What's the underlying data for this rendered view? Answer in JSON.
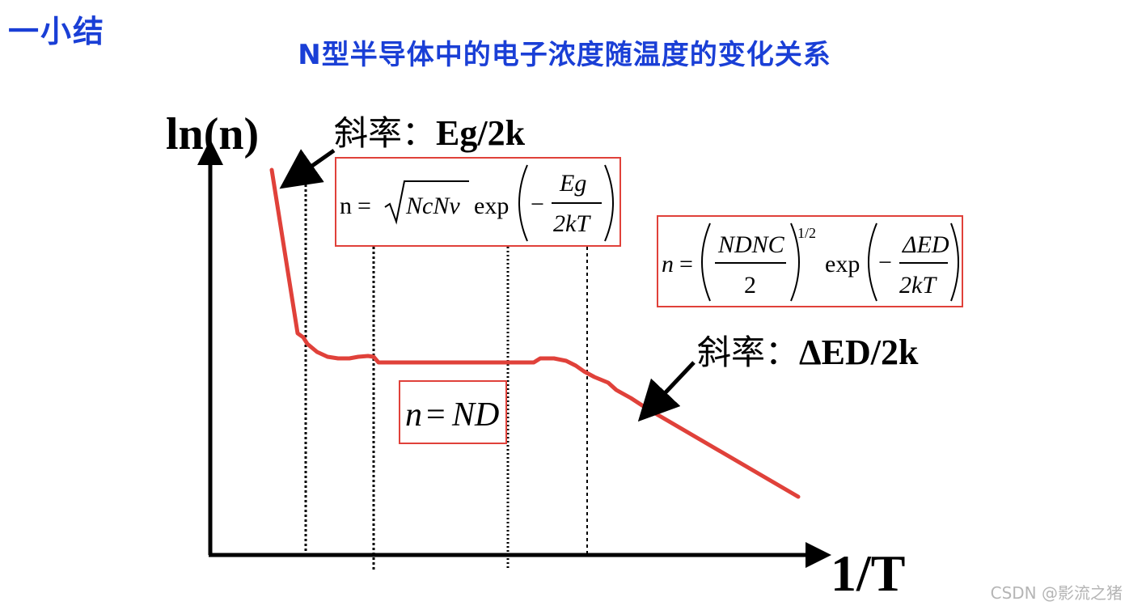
{
  "section_title": "一小结",
  "slide_title": "N型半导体中的电子浓度随温度的变化关系",
  "axes": {
    "y_label": "ln(n)",
    "x_label": "1/T"
  },
  "slopes": {
    "high_temp": {
      "prefix": "斜率：",
      "value": "Eg/2k"
    },
    "low_temp": {
      "prefix": "斜率：",
      "value": "ΔED/2k"
    }
  },
  "formulas": {
    "intrinsic": {
      "lhs": "n",
      "eq": "=",
      "sqrt_content": "NcNv",
      "exp": "exp",
      "minus": "−",
      "numerator": "Eg",
      "denominator": "2kT"
    },
    "freeze_out": {
      "lhs": "n",
      "eq": "=",
      "numerator": "NDNC",
      "denominator": "2",
      "power": "1/2",
      "exp": "exp",
      "minus": "−",
      "exp_numerator": "ΔED",
      "exp_denominator": "2kT"
    },
    "saturation": {
      "lhs": "n",
      "eq": "=",
      "rhs": "ND"
    }
  },
  "colors": {
    "title_blue": "#1a3fd6",
    "curve_red": "#e0413a",
    "axis_black": "#000000",
    "watermark_grey": "#b5b5b5"
  },
  "watermark": "CSDN @影流之猪"
}
